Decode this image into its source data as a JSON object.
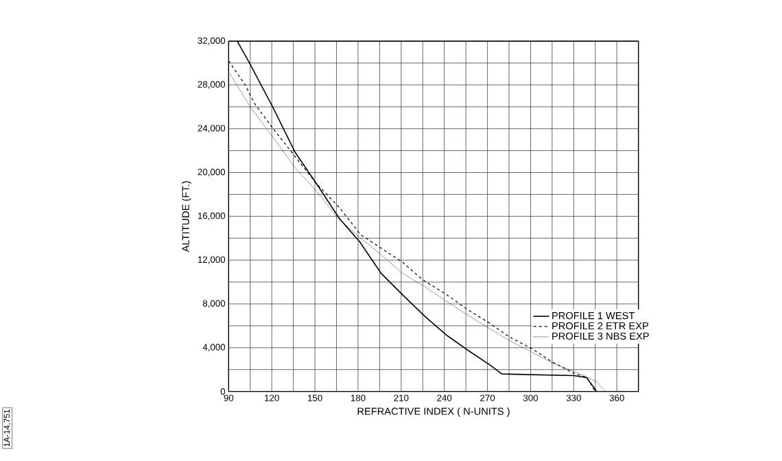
{
  "chart_data": {
    "type": "line",
    "xlabel": "REFRACTIVE INDEX  ( N-UNITS )",
    "ylabel": "ALTITUDE (FT.)",
    "annotations": [
      "1A-14,751"
    ],
    "series": [
      {
        "name": "PROFILE 1 WEST",
        "color": "#000000",
        "line_style": "solid",
        "x": [
          96,
          104.5,
          121,
          136,
          151,
          167,
          181,
          196,
          212,
          227,
          242,
          256,
          272,
          280,
          330,
          339,
          346
        ],
        "values": [
          32000,
          30000,
          25900,
          21900,
          19000,
          15800,
          13700,
          10800,
          8700,
          6800,
          5100,
          3800,
          2400,
          1600,
          1450,
          1260,
          0
        ]
      },
      {
        "name": "PROFILE 2 ETR EXP",
        "color": "#000000",
        "line_style": "dashed",
        "x": [
          90,
          101.5,
          108,
          121,
          136,
          151,
          167,
          182,
          211,
          225,
          241,
          256,
          272,
          285,
          301,
          315,
          331,
          339,
          345
        ],
        "values": [
          30200,
          28000,
          26300,
          24000,
          21500,
          19000,
          16800,
          14300,
          11800,
          10200,
          8900,
          7500,
          6200,
          5000,
          3900,
          2700,
          1600,
          1300,
          0
        ]
      },
      {
        "name": "PROFILE 3 NBS EXP",
        "color": "#000000",
        "line_style": "dotted",
        "x": [
          91,
          105.5,
          121,
          137,
          152,
          166,
          181,
          196,
          211,
          226,
          242,
          256,
          272,
          286,
          301,
          315,
          331,
          346,
          352
        ],
        "values": [
          29000,
          25900,
          23200,
          20300,
          18200,
          15800,
          14100,
          12500,
          10800,
          9600,
          8200,
          7000,
          5700,
          4600,
          3600,
          2600,
          1800,
          900,
          0
        ]
      }
    ],
    "xlim": [
      90,
      375
    ],
    "ylim": [
      0,
      32000
    ],
    "xticks": [
      90,
      {
        "value": 105,
        "label": null
      },
      120,
      {
        "value": 135,
        "label": null
      },
      150,
      {
        "value": 165,
        "label": null
      },
      180,
      {
        "value": 195,
        "label": null
      },
      210,
      {
        "value": 225,
        "label": null
      },
      240,
      {
        "value": 255,
        "label": null
      },
      270,
      {
        "value": 285,
        "label": null
      },
      300,
      {
        "value": 315,
        "label": null
      },
      330,
      {
        "value": 345,
        "label": null
      },
      360,
      {
        "value": 375,
        "label": null
      }
    ],
    "yticks": [
      {
        "value": 0,
        "label": "0"
      },
      {
        "value": 2000,
        "label": null
      },
      {
        "value": 4000,
        "label": "4,000"
      },
      {
        "value": 6000,
        "label": null
      },
      {
        "value": 8000,
        "label": "8,000"
      },
      {
        "value": 10000,
        "label": null
      },
      {
        "value": 12000,
        "label": "12,000"
      },
      {
        "value": 14000,
        "label": null
      },
      {
        "value": 16000,
        "label": "16,000"
      },
      {
        "value": 18000,
        "label": null
      },
      {
        "value": 20000,
        "label": "20,000"
      },
      {
        "value": 22000,
        "label": null
      },
      {
        "value": 24000,
        "label": "24,000"
      },
      {
        "value": 26000,
        "label": null
      },
      {
        "value": 28000,
        "label": "28,000"
      },
      {
        "value": 30000,
        "label": null
      },
      {
        "value": 32000,
        "label": "32,000"
      }
    ],
    "grid": true,
    "legend": "right",
    "marker": "none"
  }
}
